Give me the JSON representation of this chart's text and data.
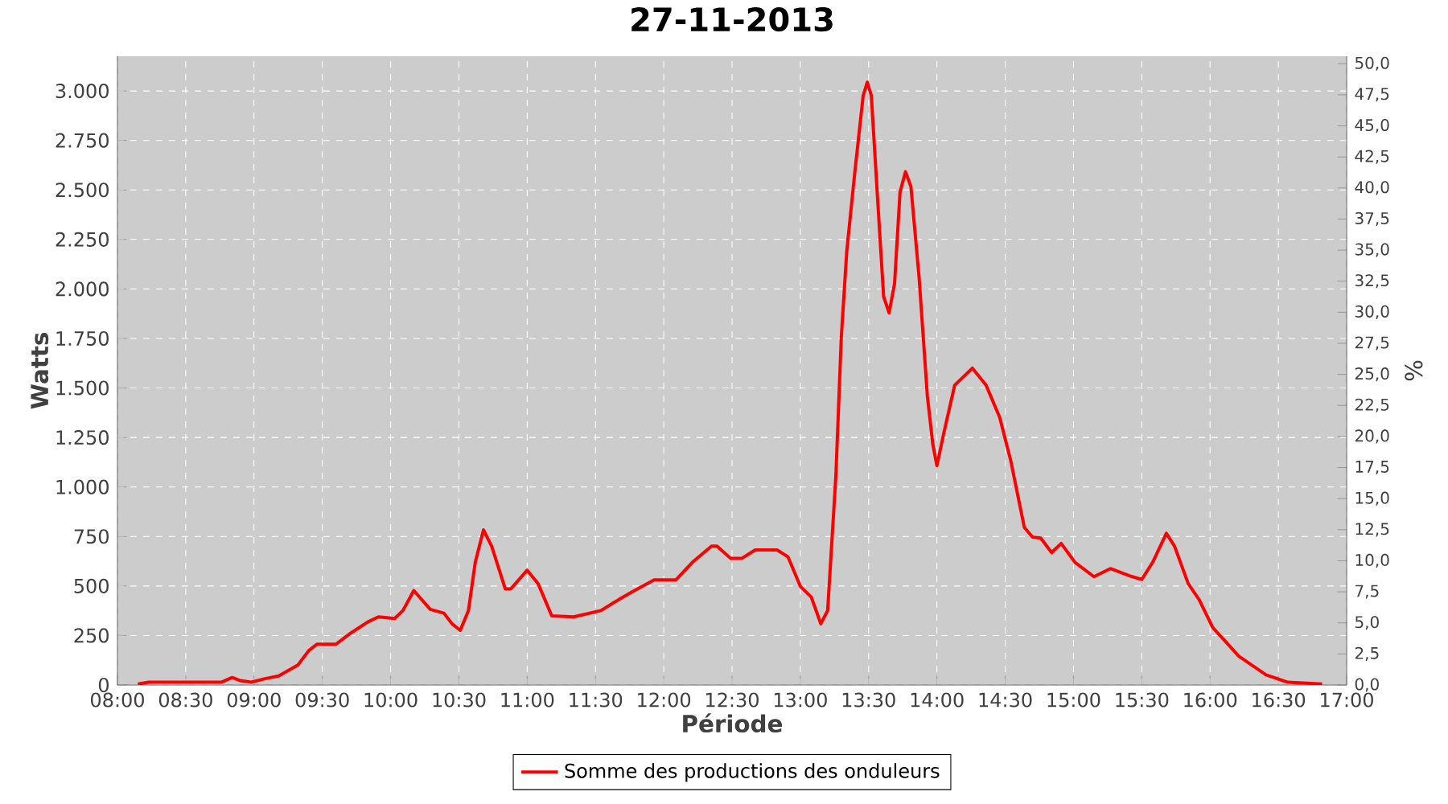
{
  "chart_data": {
    "type": "line",
    "title": "27-11-2013",
    "xlabel": "Période",
    "ylabel": "Watts",
    "y2label": "%",
    "xlim": [
      8,
      17
    ],
    "xticks": [
      {
        "value": 8,
        "label": "08:00"
      },
      {
        "value": 8.5,
        "label": "08:30"
      },
      {
        "value": 9,
        "label": "09:00"
      },
      {
        "value": 9.5,
        "label": "09:30"
      },
      {
        "value": 10,
        "label": "10:00"
      },
      {
        "value": 10.5,
        "label": "10:30"
      },
      {
        "value": 11,
        "label": "11:00"
      },
      {
        "value": 11.5,
        "label": "11:30"
      },
      {
        "value": 12,
        "label": "12:00"
      },
      {
        "value": 12.5,
        "label": "12:30"
      },
      {
        "value": 13,
        "label": "13:00"
      },
      {
        "value": 13.5,
        "label": "13:30"
      },
      {
        "value": 14,
        "label": "14:00"
      },
      {
        "value": 14.5,
        "label": "14:30"
      },
      {
        "value": 15,
        "label": "15:00"
      },
      {
        "value": 15.5,
        "label": "15:30"
      },
      {
        "value": 16,
        "label": "16:00"
      },
      {
        "value": 16.5,
        "label": "16:30"
      },
      {
        "value": 17,
        "label": "17:00"
      }
    ],
    "ylim": [
      0,
      3175
    ],
    "yticks": [
      0,
      250,
      500,
      750,
      {
        "value": 1000,
        "label": "1.000"
      },
      {
        "value": 1250,
        "label": "1.250"
      },
      {
        "value": 1500,
        "label": "1.500"
      },
      {
        "value": 1750,
        "label": "1.750"
      },
      {
        "value": 2000,
        "label": "2.000"
      },
      {
        "value": 2250,
        "label": "2.250"
      },
      {
        "value": 2500,
        "label": "2.500"
      },
      {
        "value": 2750,
        "label": "2.750"
      },
      {
        "value": 3000,
        "label": "3.000"
      }
    ],
    "y2lim": [
      0,
      50.6
    ],
    "y2ticks": [
      {
        "value": 0,
        "label": "0,0"
      },
      {
        "value": 2.5,
        "label": "2,5"
      },
      {
        "value": 5,
        "label": "5,0"
      },
      {
        "value": 7.5,
        "label": "7,5"
      },
      {
        "value": 10,
        "label": "10,0"
      },
      {
        "value": 12.5,
        "label": "12,5"
      },
      {
        "value": 15,
        "label": "15,0"
      },
      {
        "value": 17.5,
        "label": "17,5"
      },
      {
        "value": 20,
        "label": "20,0"
      },
      {
        "value": 22.5,
        "label": "22,5"
      },
      {
        "value": 25,
        "label": "25,0"
      },
      {
        "value": 27.5,
        "label": "27,5"
      },
      {
        "value": 30,
        "label": "30,0"
      },
      {
        "value": 32.5,
        "label": "32,5"
      },
      {
        "value": 35,
        "label": "35,0"
      },
      {
        "value": 37.5,
        "label": "37,5"
      },
      {
        "value": 40,
        "label": "40,0"
      },
      {
        "value": 42.5,
        "label": "42,5"
      },
      {
        "value": 45,
        "label": "45,0"
      },
      {
        "value": 47.5,
        "label": "47,5"
      },
      {
        "value": 50,
        "label": "50,0"
      }
    ],
    "grid": true,
    "legend": "bottom",
    "series": [
      {
        "name": "Somme des productions des onduleurs",
        "color": "#ff0000",
        "x": [
          8.15,
          8.23,
          8.76,
          8.84,
          8.9,
          8.98,
          9.08,
          9.18,
          9.32,
          9.4,
          9.46,
          9.6,
          9.71,
          9.83,
          9.91,
          10.03,
          10.09,
          10.17,
          10.29,
          10.39,
          10.45,
          10.51,
          10.57,
          10.62,
          10.68,
          10.74,
          10.84,
          10.88,
          11.0,
          11.08,
          11.18,
          11.34,
          11.54,
          11.67,
          11.77,
          11.93,
          12.09,
          12.21,
          12.35,
          12.39,
          12.49,
          12.57,
          12.67,
          12.83,
          12.91,
          13.0,
          13.08,
          13.15,
          13.2,
          13.26,
          13.3,
          13.34,
          13.4,
          13.46,
          13.49,
          13.52,
          13.57,
          13.61,
          13.65,
          13.69,
          13.73,
          13.77,
          13.81,
          13.87,
          13.93,
          13.97,
          14.0,
          14.05,
          14.13,
          14.26,
          14.36,
          14.46,
          14.54,
          14.64,
          14.7,
          14.76,
          14.84,
          14.91,
          15.01,
          15.15,
          15.27,
          15.41,
          15.5,
          15.58,
          15.68,
          15.74,
          15.84,
          15.92,
          16.02,
          16.21,
          16.41,
          16.57,
          16.82
        ],
        "values": [
          5,
          14,
          14,
          38,
          22,
          14,
          32,
          46,
          100,
          173,
          206,
          206,
          263,
          317,
          344,
          336,
          376,
          477,
          382,
          363,
          309,
          276,
          376,
          620,
          783,
          701,
          485,
          485,
          580,
          512,
          349,
          344,
          376,
          431,
          471,
          531,
          531,
          620,
          701,
          701,
          639,
          639,
          682,
          682,
          647,
          498,
          444,
          309,
          376,
          1053,
          1757,
          2191,
          2597,
          2976,
          3044,
          2976,
          2407,
          1961,
          1879,
          2028,
          2489,
          2592,
          2516,
          2055,
          1460,
          1216,
          1108,
          1270,
          1514,
          1600,
          1514,
          1351,
          1135,
          796,
          747,
          742,
          669,
          715,
          620,
          547,
          588,
          552,
          533,
          620,
          766,
          701,
          512,
          431,
          290,
          146,
          51,
          14,
          5
        ]
      }
    ]
  }
}
